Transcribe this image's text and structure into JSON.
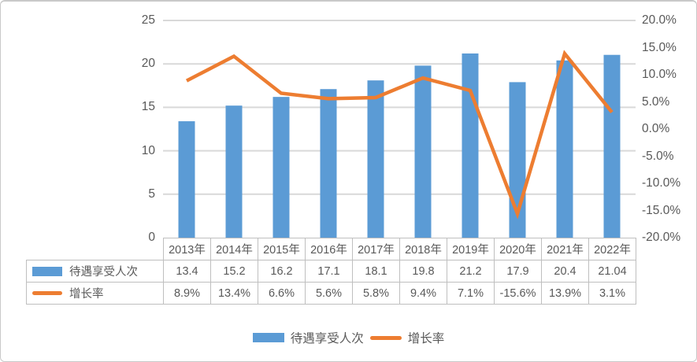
{
  "colors": {
    "bar": "#5B9BD5",
    "line": "#ED7D31",
    "gridline": "#D9D9D9",
    "table_border": "#BFBFBF",
    "text": "#595959",
    "panel_border": "#C9C9C9",
    "background": "#FFFFFF"
  },
  "chart_data": {
    "type": "combo-bar-line",
    "title": "",
    "categories": [
      "2013年",
      "2014年",
      "2015年",
      "2016年",
      "2017年",
      "2018年",
      "2019年",
      "2020年",
      "2021年",
      "2022年"
    ],
    "series": [
      {
        "name": "待遇享受人次",
        "type": "bar",
        "axis": "left",
        "color": "#5B9BD5",
        "values": [
          13.4,
          15.2,
          16.2,
          17.1,
          18.1,
          19.8,
          21.2,
          17.9,
          20.4,
          21.04
        ]
      },
      {
        "name": "增长率",
        "type": "line",
        "axis": "right",
        "color": "#ED7D31",
        "values_pct": [
          8.9,
          13.4,
          6.6,
          5.6,
          5.8,
          9.4,
          7.1,
          -15.6,
          13.9,
          3.1
        ]
      }
    ],
    "left_axis": {
      "min": 0,
      "max": 25,
      "step": 5,
      "tick_labels": [
        "25",
        "20",
        "15",
        "10",
        "5",
        "0"
      ]
    },
    "right_axis": {
      "min": -20,
      "max": 20,
      "step": 5,
      "tick_labels": [
        "20.0%",
        "15.0%",
        "10.0%",
        "5.0%",
        "0.0%",
        "-5.0%",
        "-10.0%",
        "-15.0%",
        "-20.0%"
      ]
    },
    "grid": true,
    "legend_position": "bottom"
  },
  "data_table": {
    "header": [
      "2013年",
      "2014年",
      "2015年",
      "2016年",
      "2017年",
      "2018年",
      "2019年",
      "2020年",
      "2021年",
      "2022年"
    ],
    "rows": [
      {
        "label": "待遇享受人次",
        "swatch": "bar",
        "values": [
          "13.4",
          "15.2",
          "16.2",
          "17.1",
          "18.1",
          "19.8",
          "21.2",
          "17.9",
          "20.4",
          "21.04"
        ]
      },
      {
        "label": "增长率",
        "swatch": "line",
        "values": [
          "8.9%",
          "13.4%",
          "6.6%",
          "5.6%",
          "5.8%",
          "9.4%",
          "7.1%",
          "-15.6%",
          "13.9%",
          "3.1%"
        ]
      }
    ]
  },
  "legend": {
    "items": [
      {
        "label": "待遇享受人次",
        "swatch": "bar"
      },
      {
        "label": "增长率",
        "swatch": "line"
      }
    ]
  }
}
